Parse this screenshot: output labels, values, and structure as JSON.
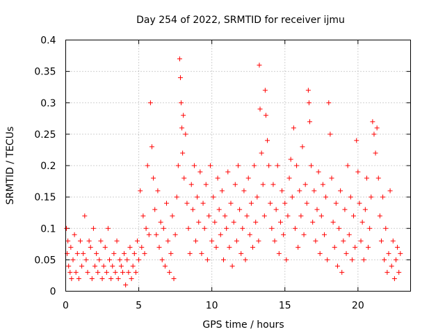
{
  "chart_data": {
    "type": "scatter",
    "title": "Day 254 of 2022, SRMTID for receiver ijmu",
    "xlabel": "GPS time / hours",
    "ylabel": "SRMTID / TECUs",
    "xlim": [
      0,
      23.6
    ],
    "ylim": [
      0,
      0.4
    ],
    "xticks": [
      0,
      5,
      10,
      15,
      20
    ],
    "xtick_labels": [
      "0",
      "5",
      "10",
      "15",
      "20"
    ],
    "yticks": [
      0,
      0.05,
      0.1,
      0.15,
      0.2,
      0.25,
      0.3,
      0.35,
      0.4
    ],
    "ytick_labels": [
      "0",
      "0.05",
      "0.1",
      "0.15",
      "0.2",
      "0.25",
      "0.3",
      "0.35",
      "0.4"
    ],
    "grid": true,
    "marker": "+",
    "series": [
      {
        "name": "SRMTID",
        "color": "#ff0000",
        "x": [
          0.05,
          0.1,
          0.15,
          0.2,
          0.3,
          0.35,
          0.4,
          0.5,
          0.6,
          0.7,
          0.8,
          0.9,
          1.0,
          1.1,
          1.2,
          1.3,
          1.4,
          1.5,
          1.6,
          1.7,
          1.8,
          1.9,
          2.0,
          2.1,
          2.2,
          2.3,
          2.4,
          2.5,
          2.6,
          2.7,
          2.8,
          2.9,
          3.0,
          3.1,
          3.2,
          3.3,
          3.4,
          3.5,
          3.6,
          3.7,
          3.8,
          3.9,
          4.0,
          4.1,
          4.2,
          4.3,
          4.4,
          4.5,
          4.6,
          4.7,
          4.8,
          4.9,
          5.0,
          5.1,
          5.2,
          5.3,
          5.4,
          5.5,
          5.6,
          5.7,
          5.8,
          5.9,
          6.0,
          6.1,
          6.2,
          6.3,
          6.4,
          6.5,
          6.6,
          6.7,
          6.8,
          6.9,
          7.0,
          7.1,
          7.2,
          7.3,
          7.4,
          7.5,
          7.6,
          7.7,
          7.8,
          7.85,
          7.9,
          7.95,
          8.0,
          8.05,
          8.1,
          8.2,
          8.3,
          8.4,
          8.5,
          8.6,
          8.7,
          8.8,
          8.9,
          9.0,
          9.1,
          9.2,
          9.3,
          9.4,
          9.5,
          9.6,
          9.7,
          9.8,
          9.9,
          10.0,
          10.1,
          10.2,
          10.3,
          10.4,
          10.5,
          10.6,
          10.7,
          10.8,
          10.9,
          11.0,
          11.1,
          11.2,
          11.3,
          11.4,
          11.5,
          11.6,
          11.7,
          11.8,
          11.9,
          12.0,
          12.1,
          12.2,
          12.3,
          12.4,
          12.5,
          12.6,
          12.7,
          12.8,
          12.9,
          13.0,
          13.1,
          13.2,
          13.25,
          13.3,
          13.4,
          13.5,
          13.6,
          13.65,
          13.7,
          13.8,
          13.9,
          14.0,
          14.1,
          14.2,
          14.3,
          14.4,
          14.5,
          14.6,
          14.7,
          14.8,
          14.9,
          15.0,
          15.1,
          15.2,
          15.3,
          15.4,
          15.5,
          15.6,
          15.7,
          15.8,
          15.9,
          16.0,
          16.1,
          16.2,
          16.3,
          16.4,
          16.5,
          16.6,
          16.65,
          16.7,
          16.8,
          16.9,
          17.0,
          17.1,
          17.2,
          17.3,
          17.4,
          17.5,
          17.6,
          17.7,
          17.8,
          17.9,
          18.0,
          18.1,
          18.2,
          18.3,
          18.4,
          18.5,
          18.6,
          18.7,
          18.8,
          18.9,
          19.0,
          19.1,
          19.2,
          19.3,
          19.4,
          19.5,
          19.6,
          19.7,
          19.8,
          19.9,
          20.0,
          20.1,
          20.2,
          20.3,
          20.4,
          20.5,
          20.6,
          20.7,
          20.8,
          20.9,
          21.0,
          21.1,
          21.2,
          21.3,
          21.4,
          21.5,
          21.6,
          21.7,
          21.8,
          21.9,
          22.0,
          22.1,
          22.2,
          22.3,
          22.4,
          22.5,
          22.6,
          22.7,
          22.8,
          22.9
        ],
        "y": [
          0.1,
          0.06,
          0.08,
          0.04,
          0.03,
          0.07,
          0.02,
          0.05,
          0.09,
          0.03,
          0.06,
          0.02,
          0.08,
          0.04,
          0.06,
          0.12,
          0.05,
          0.03,
          0.08,
          0.07,
          0.02,
          0.1,
          0.04,
          0.06,
          0.03,
          0.05,
          0.08,
          0.02,
          0.04,
          0.07,
          0.03,
          0.1,
          0.05,
          0.02,
          0.04,
          0.06,
          0.03,
          0.08,
          0.02,
          0.05,
          0.04,
          0.03,
          0.06,
          0.01,
          0.05,
          0.03,
          0.07,
          0.02,
          0.04,
          0.06,
          0.03,
          0.08,
          0.05,
          0.16,
          0.07,
          0.12,
          0.06,
          0.1,
          0.2,
          0.09,
          0.3,
          0.23,
          0.18,
          0.13,
          0.09,
          0.16,
          0.07,
          0.11,
          0.05,
          0.1,
          0.04,
          0.14,
          0.08,
          0.03,
          0.06,
          0.12,
          0.02,
          0.09,
          0.15,
          0.2,
          0.37,
          0.34,
          0.3,
          0.26,
          0.22,
          0.28,
          0.18,
          0.25,
          0.14,
          0.1,
          0.06,
          0.17,
          0.13,
          0.2,
          0.08,
          0.15,
          0.11,
          0.19,
          0.06,
          0.14,
          0.1,
          0.17,
          0.05,
          0.12,
          0.2,
          0.08,
          0.15,
          0.11,
          0.07,
          0.18,
          0.13,
          0.09,
          0.16,
          0.05,
          0.12,
          0.1,
          0.19,
          0.07,
          0.14,
          0.04,
          0.11,
          0.17,
          0.08,
          0.2,
          0.13,
          0.06,
          0.1,
          0.16,
          0.05,
          0.12,
          0.18,
          0.09,
          0.14,
          0.07,
          0.2,
          0.11,
          0.15,
          0.08,
          0.36,
          0.29,
          0.22,
          0.17,
          0.12,
          0.32,
          0.28,
          0.24,
          0.2,
          0.14,
          0.1,
          0.17,
          0.08,
          0.13,
          0.2,
          0.06,
          0.11,
          0.16,
          0.09,
          0.14,
          0.05,
          0.12,
          0.18,
          0.21,
          0.15,
          0.26,
          0.1,
          0.2,
          0.07,
          0.16,
          0.12,
          0.23,
          0.09,
          0.17,
          0.14,
          0.32,
          0.3,
          0.27,
          0.2,
          0.11,
          0.16,
          0.08,
          0.13,
          0.19,
          0.06,
          0.12,
          0.17,
          0.09,
          0.15,
          0.05,
          0.3,
          0.25,
          0.18,
          0.11,
          0.07,
          0.14,
          0.04,
          0.1,
          0.16,
          0.03,
          0.08,
          0.13,
          0.06,
          0.2,
          0.09,
          0.15,
          0.05,
          0.12,
          0.07,
          0.24,
          0.19,
          0.14,
          0.08,
          0.11,
          0.05,
          0.13,
          0.18,
          0.07,
          0.1,
          0.15,
          0.27,
          0.25,
          0.22,
          0.26,
          0.18,
          0.12,
          0.08,
          0.15,
          0.05,
          0.1,
          0.03,
          0.06,
          0.16,
          0.04,
          0.08,
          0.02,
          0.05,
          0.07,
          0.03,
          0.06
        ]
      }
    ]
  }
}
